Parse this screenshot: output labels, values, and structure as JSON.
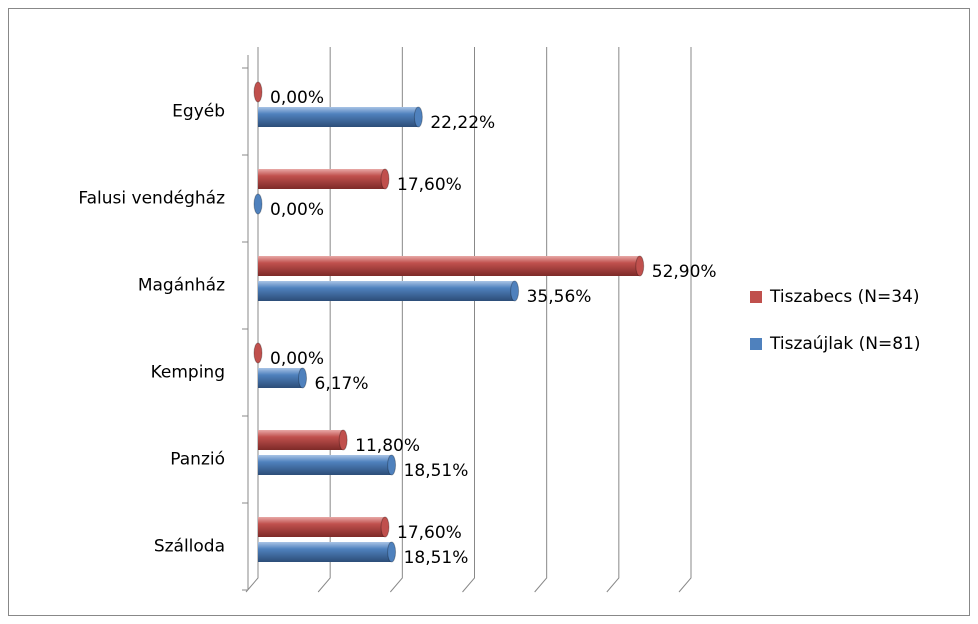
{
  "chart_data": {
    "type": "bar",
    "orientation": "horizontal",
    "categories": [
      "Egyéb",
      "Falusi vendégház",
      "Magánház",
      "Kemping",
      "Panzió",
      "Szálloda"
    ],
    "series": [
      {
        "name": "Tiszabecs (N=34)",
        "color": "#c0504d",
        "values": [
          0,
          17.6,
          52.9,
          0,
          11.8,
          17.6
        ],
        "value_labels": [
          "0,00%",
          "17,60%",
          "52,90%",
          "0,00%",
          "11,80%",
          "17,60%"
        ]
      },
      {
        "name": "Tiszaújlak (N=81)",
        "color": "#4f81bd",
        "values": [
          22.22,
          0,
          35.56,
          6.17,
          18.51,
          18.51
        ],
        "value_labels": [
          "22,22%",
          "0,00%",
          "35,56%",
          "6,17%",
          "18,51%",
          "18,51%"
        ]
      }
    ],
    "xlim": [
      0,
      60
    ],
    "xticks": [
      0,
      10,
      20,
      30,
      40,
      50,
      60
    ],
    "grid": true,
    "legend": "right"
  }
}
